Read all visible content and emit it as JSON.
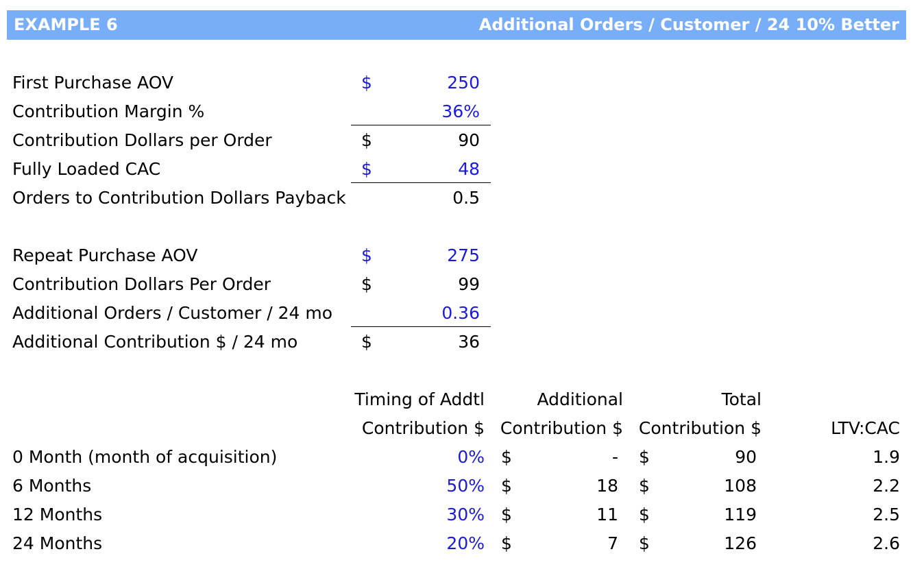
{
  "header": {
    "left": "EXAMPLE 6",
    "right": "Additional Orders / Customer / 24 10% Better"
  },
  "section1": {
    "rows": [
      {
        "label": "First Purchase AOV",
        "dollar": "$",
        "value": "250"
      },
      {
        "label": "Contribution Margin %",
        "dollar": "",
        "value": "36%"
      },
      {
        "label": "Contribution Dollars per Order",
        "dollar": "$",
        "value": "90"
      },
      {
        "label": "Fully Loaded CAC",
        "dollar": "$",
        "value": "48"
      },
      {
        "label": "Orders to Contribution Dollars Payback",
        "dollar": "",
        "value": "0.5"
      }
    ]
  },
  "section2": {
    "rows": [
      {
        "label": "Repeat Purchase AOV",
        "dollar": "$",
        "value": "275"
      },
      {
        "label": "Contribution Dollars Per Order",
        "dollar": "$",
        "value": "99"
      },
      {
        "label": "Additional Orders / Customer / 24 mo",
        "dollar": "",
        "value": "0.36"
      },
      {
        "label": "Additional Contribution $ / 24 mo",
        "dollar": "$",
        "value": "36"
      }
    ]
  },
  "timing": {
    "headers": {
      "timing_line1": "Timing of Addtl",
      "timing_line2": "Contribution $",
      "additional_line1": "Additional",
      "additional_line2": "Contribution $",
      "total_line1": "Total",
      "total_line2": "Contribution $",
      "ltv": "LTV:CAC"
    },
    "rows": [
      {
        "label": "0 Month (month of acquisition)",
        "timing": "0%",
        "add_dollar": "$",
        "additional": "-",
        "tot_dollar": "$",
        "total": "90",
        "ltv": "1.9"
      },
      {
        "label": "6 Months",
        "timing": "50%",
        "add_dollar": "$",
        "additional": "18",
        "tot_dollar": "$",
        "total": "108",
        "ltv": "2.2"
      },
      {
        "label": "12 Months",
        "timing": "30%",
        "add_dollar": "$",
        "additional": "11",
        "tot_dollar": "$",
        "total": "119",
        "ltv": "2.5"
      },
      {
        "label": "24 Months",
        "timing": "20%",
        "add_dollar": "$",
        "additional": "7",
        "tot_dollar": "$",
        "total": "126",
        "ltv": "2.6"
      }
    ]
  },
  "colors": {
    "header_bg": "#78aef8",
    "input_blue": "#1a1adc"
  }
}
